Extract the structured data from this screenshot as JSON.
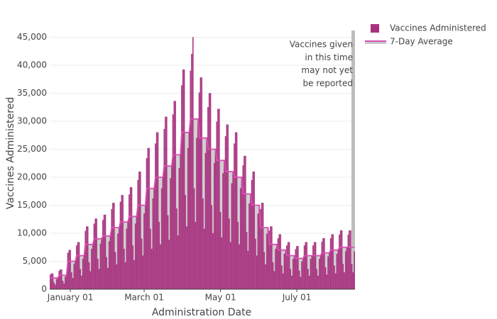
{
  "chart_data": {
    "type": "bar",
    "x_label": "Administration Date",
    "y_label": "Vaccines Administered",
    "annotation": [
      "Vaccines given",
      "in this time",
      "may not yet",
      "be reported"
    ],
    "grid": true,
    "legend": "top-right",
    "ylim": [
      0,
      46200
    ],
    "yticks": [
      0,
      {
        "value": 5000,
        "label": "5,000"
      },
      {
        "value": 10000,
        "label": "10,000"
      },
      {
        "value": 15000,
        "label": "15,000"
      },
      {
        "value": 20000,
        "label": "20,000"
      },
      {
        "value": 25000,
        "label": "25,000"
      },
      {
        "value": 30000,
        "label": "30,000"
      },
      {
        "value": 35000,
        "label": "35,000"
      },
      {
        "value": 40000,
        "label": "40,000"
      },
      {
        "value": 45000,
        "label": "45,000"
      }
    ],
    "categories": [
      null,
      null,
      null,
      null,
      null,
      null,
      null,
      null,
      null,
      null,
      null,
      null,
      null,
      null,
      null,
      null,
      "January 01",
      null,
      null,
      null,
      null,
      null,
      null,
      null,
      null,
      null,
      null,
      null,
      null,
      null,
      null,
      null,
      null,
      null,
      null,
      null,
      null,
      null,
      null,
      null,
      null,
      null,
      null,
      null,
      null,
      null,
      null,
      null,
      null,
      null,
      null,
      null,
      null,
      null,
      null,
      null,
      null,
      null,
      null,
      null,
      null,
      null,
      null,
      null,
      null,
      null,
      null,
      null,
      null,
      null,
      null,
      null,
      null,
      null,
      null,
      "March 01",
      null,
      null,
      null,
      null,
      null,
      null,
      null,
      null,
      null,
      null,
      null,
      null,
      null,
      null,
      null,
      null,
      null,
      null,
      null,
      null,
      null,
      null,
      null,
      null,
      null,
      null,
      null,
      null,
      null,
      null,
      null,
      null,
      null,
      null,
      null,
      null,
      null,
      null,
      null,
      null,
      null,
      null,
      null,
      null,
      null,
      null,
      null,
      null,
      null,
      null,
      null,
      null,
      null,
      null,
      null,
      null,
      null,
      null,
      null,
      null,
      "May 01",
      null,
      null,
      null,
      null,
      null,
      null,
      null,
      null,
      null,
      null,
      null,
      null,
      null,
      null,
      null,
      null,
      null,
      null,
      null,
      null,
      null,
      null,
      null,
      null,
      null,
      null,
      null,
      null,
      null,
      null,
      null,
      null,
      null,
      null,
      null,
      null,
      null,
      null,
      null,
      null,
      null,
      null,
      null,
      null,
      null,
      null,
      null,
      null,
      null,
      null,
      null,
      null,
      null,
      null,
      null,
      null,
      null,
      null,
      null,
      null,
      "July 01",
      null,
      null,
      null,
      null,
      null,
      null,
      null,
      null,
      null,
      null,
      null,
      null,
      null,
      null,
      null,
      null,
      null,
      null,
      null,
      null,
      null,
      null,
      null,
      null,
      null,
      null,
      null,
      null,
      null,
      null,
      null,
      null,
      null,
      null,
      null,
      null,
      null,
      null,
      null,
      null,
      null,
      null,
      null,
      null,
      null,
      null
    ],
    "series": [
      {
        "name": "Vaccines Administered",
        "type": "bar",
        "color": "#a8327f",
        "values": [
          2600,
          2800,
          2800,
          1200,
          800,
          1800,
          2000,
          3250,
          3500,
          3500,
          1500,
          1000,
          2250,
          2500,
          6500,
          7000,
          7000,
          3000,
          2000,
          4500,
          5000,
          7800,
          8400,
          8400,
          3600,
          2400,
          5400,
          6000,
          10400,
          11200,
          11200,
          4800,
          3200,
          7200,
          8000,
          11700,
          12600,
          12600,
          5400,
          3600,
          8100,
          9000,
          12350,
          13300,
          13300,
          5700,
          3800,
          8550,
          9500,
          14300,
          15400,
          15400,
          6600,
          4400,
          9900,
          11000,
          15600,
          16800,
          16800,
          7200,
          4800,
          10800,
          12000,
          16900,
          18200,
          18200,
          7800,
          5200,
          11700,
          13000,
          19500,
          21000,
          21000,
          9000,
          6000,
          13500,
          15000,
          23400,
          25200,
          25200,
          10800,
          7200,
          16200,
          18000,
          26000,
          28000,
          28000,
          12000,
          8000,
          18000,
          20000,
          28600,
          30800,
          30800,
          13200,
          8800,
          19800,
          22000,
          31200,
          33600,
          33600,
          14400,
          9600,
          21600,
          24000,
          36400,
          39200,
          39200,
          16800,
          11200,
          25200,
          28000,
          39000,
          42000,
          45000,
          18000,
          12000,
          27000,
          30000,
          35100,
          37800,
          37800,
          16200,
          10800,
          24300,
          27000,
          32500,
          35000,
          35000,
          15000,
          10000,
          22500,
          25000,
          29900,
          32200,
          32200,
          13800,
          9200,
          20700,
          23000,
          27300,
          29400,
          29400,
          12600,
          8400,
          18900,
          21000,
          26000,
          28000,
          28000,
          12000,
          8000,
          18000,
          20000,
          22100,
          23800,
          23800,
          10200,
          6800,
          15300,
          17000,
          19500,
          21000,
          21000,
          9000,
          6000,
          13500,
          15000,
          14300,
          15400,
          15400,
          6600,
          4400,
          9900,
          11000,
          10400,
          11200,
          11200,
          4800,
          3200,
          7200,
          8000,
          9100,
          9800,
          9800,
          4200,
          2800,
          6300,
          7000,
          7800,
          8400,
          8400,
          3600,
          2400,
          5400,
          6000,
          7150,
          7700,
          7700,
          3300,
          2200,
          4950,
          5500,
          7800,
          8400,
          8400,
          3600,
          2400,
          5400,
          6000,
          7800,
          8400,
          8400,
          3600,
          2400,
          5400,
          6000,
          8450,
          9100,
          9100,
          3900,
          2600,
          5850,
          6500,
          9100,
          9800,
          9800,
          4200,
          2800,
          6300,
          7000,
          9750,
          10500,
          10500,
          4500,
          3000,
          6750,
          7500,
          9750,
          10500,
          10500,
          4500,
          3000,
          6750
        ]
      },
      {
        "name": "7-Day Average",
        "type": "line",
        "color": "#d94fb3",
        "fill": "#c8c8c8",
        "values": [
          2000,
          2000,
          2000,
          2000,
          2000,
          2000,
          2000,
          2500,
          2500,
          2500,
          2500,
          2500,
          2500,
          2500,
          5000,
          5000,
          5000,
          5000,
          5000,
          5000,
          5000,
          6000,
          6000,
          6000,
          6000,
          6000,
          6000,
          6000,
          8000,
          8000,
          8000,
          8000,
          8000,
          8000,
          8000,
          9000,
          9000,
          9000,
          9000,
          9000,
          9000,
          9000,
          9500,
          9500,
          9500,
          9500,
          9500,
          9500,
          9500,
          11000,
          11000,
          11000,
          11000,
          11000,
          11000,
          11000,
          12000,
          12000,
          12000,
          12000,
          12000,
          12000,
          12000,
          13000,
          13000,
          13000,
          13000,
          13000,
          13000,
          13000,
          15000,
          15000,
          15000,
          15000,
          15000,
          15000,
          15000,
          18000,
          18000,
          18000,
          18000,
          18000,
          18000,
          18000,
          20000,
          20000,
          20000,
          20000,
          20000,
          20000,
          20000,
          22000,
          22000,
          22000,
          22000,
          22000,
          22000,
          22000,
          24000,
          24000,
          24000,
          24000,
          24000,
          24000,
          24000,
          28000,
          28000,
          28000,
          28000,
          28000,
          28000,
          28000,
          30400,
          30400,
          30400,
          30400,
          30400,
          30400,
          30400,
          27000,
          27000,
          27000,
          27000,
          27000,
          27000,
          27000,
          25000,
          25000,
          25000,
          25000,
          25000,
          25000,
          25000,
          23000,
          23000,
          23000,
          23000,
          23000,
          23000,
          23000,
          21000,
          21000,
          21000,
          21000,
          21000,
          21000,
          21000,
          20000,
          20000,
          20000,
          20000,
          20000,
          20000,
          20000,
          17000,
          17000,
          17000,
          17000,
          17000,
          17000,
          17000,
          15000,
          15000,
          15000,
          15000,
          15000,
          15000,
          15000,
          11000,
          11000,
          11000,
          11000,
          11000,
          11000,
          11000,
          8000,
          8000,
          8000,
          8000,
          8000,
          8000,
          8000,
          7000,
          7000,
          7000,
          7000,
          7000,
          7000,
          7000,
          6000,
          6000,
          6000,
          6000,
          6000,
          6000,
          6000,
          5500,
          5500,
          5500,
          5500,
          5500,
          5500,
          5500,
          6000,
          6000,
          6000,
          6000,
          6000,
          6000,
          6000,
          6000,
          6000,
          6000,
          6000,
          6000,
          6000,
          6000,
          6500,
          6500,
          6500,
          6500,
          6500,
          6500,
          6500,
          7000,
          7000,
          7000,
          7000,
          7000,
          7000,
          7000,
          7500,
          7500,
          7500,
          7500,
          7500,
          7500,
          7500,
          7500,
          7500,
          7500,
          7500,
          7500,
          7500
        ]
      }
    ]
  }
}
